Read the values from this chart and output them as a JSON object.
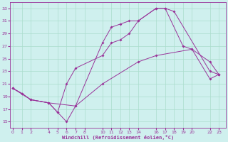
{
  "xlabel": "Windchill (Refroidissement éolien,°C)",
  "bg_color": "#cff0ee",
  "grid_color": "#aaddcc",
  "line_color": "#993399",
  "xticks": [
    0,
    1,
    2,
    4,
    5,
    6,
    7,
    8,
    10,
    11,
    12,
    13,
    14,
    16,
    17,
    18,
    19,
    20,
    22,
    23
  ],
  "yticks": [
    15,
    17,
    19,
    21,
    23,
    25,
    27,
    29,
    31,
    33
  ],
  "xlim": [
    -0.3,
    23.8
  ],
  "ylim": [
    14.0,
    34.0
  ],
  "line1_x": [
    0,
    1,
    2,
    4,
    5,
    6,
    7,
    10,
    11,
    12,
    13,
    14,
    16,
    17,
    18,
    22,
    23
  ],
  "line1_y": [
    20.3,
    19.5,
    18.5,
    18.0,
    16.5,
    15.0,
    17.5,
    27.5,
    30.0,
    30.5,
    31.0,
    31.0,
    33.0,
    33.0,
    32.5,
    23.0,
    22.5
  ],
  "line2_x": [
    0,
    1,
    2,
    4,
    5,
    6,
    7,
    10,
    11,
    12,
    13,
    14,
    16,
    17,
    19,
    20,
    22,
    23
  ],
  "line2_y": [
    20.3,
    19.5,
    18.5,
    18.0,
    16.5,
    21.0,
    23.5,
    25.5,
    27.5,
    28.0,
    29.0,
    31.0,
    33.0,
    33.0,
    27.0,
    26.5,
    24.5,
    22.5
  ],
  "line3_x": [
    0,
    2,
    4,
    7,
    10,
    14,
    16,
    20,
    22,
    23
  ],
  "line3_y": [
    20.3,
    18.5,
    18.0,
    17.5,
    21.0,
    24.5,
    25.5,
    26.5,
    21.8,
    22.5
  ]
}
